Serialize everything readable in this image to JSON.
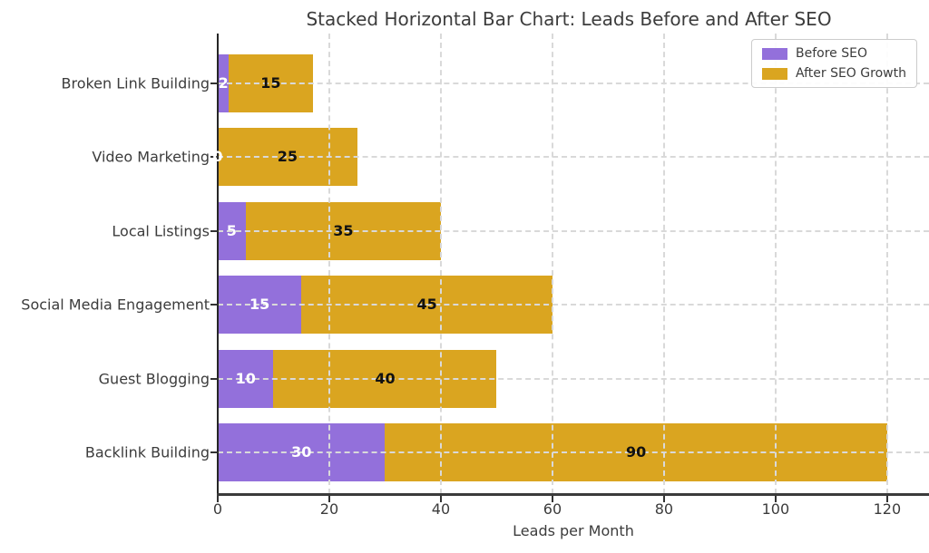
{
  "chart_data": {
    "type": "bar",
    "orientation": "horizontal",
    "stacked": true,
    "title": "Stacked Horizontal Bar Chart: Leads Before and After SEO",
    "xlabel": "Leads per Month",
    "ylabel": "",
    "categories": [
      "Broken Link Building",
      "Video Marketing",
      "Local Listings",
      "Social Media Engagement",
      "Guest Blogging",
      "Backlink Building"
    ],
    "series": [
      {
        "name": "Before SEO",
        "color": "#9370DB",
        "label_color": "#ffffff",
        "values": [
          2,
          0,
          5,
          15,
          10,
          30
        ]
      },
      {
        "name": "After SEO Growth",
        "color": "#DAA520",
        "label_color": "#111111",
        "values": [
          15,
          25,
          35,
          45,
          40,
          90
        ]
      }
    ],
    "xticks": [
      0,
      20,
      40,
      60,
      80,
      100,
      120
    ],
    "xlim": [
      0,
      127.5
    ],
    "grid": {
      "style": "dashed",
      "color": "#d9d9d9",
      "above_bars": true
    },
    "legend": {
      "position": "upper right"
    },
    "axis_color": "#3b3b3b",
    "text_color": "#3c3c3c"
  }
}
